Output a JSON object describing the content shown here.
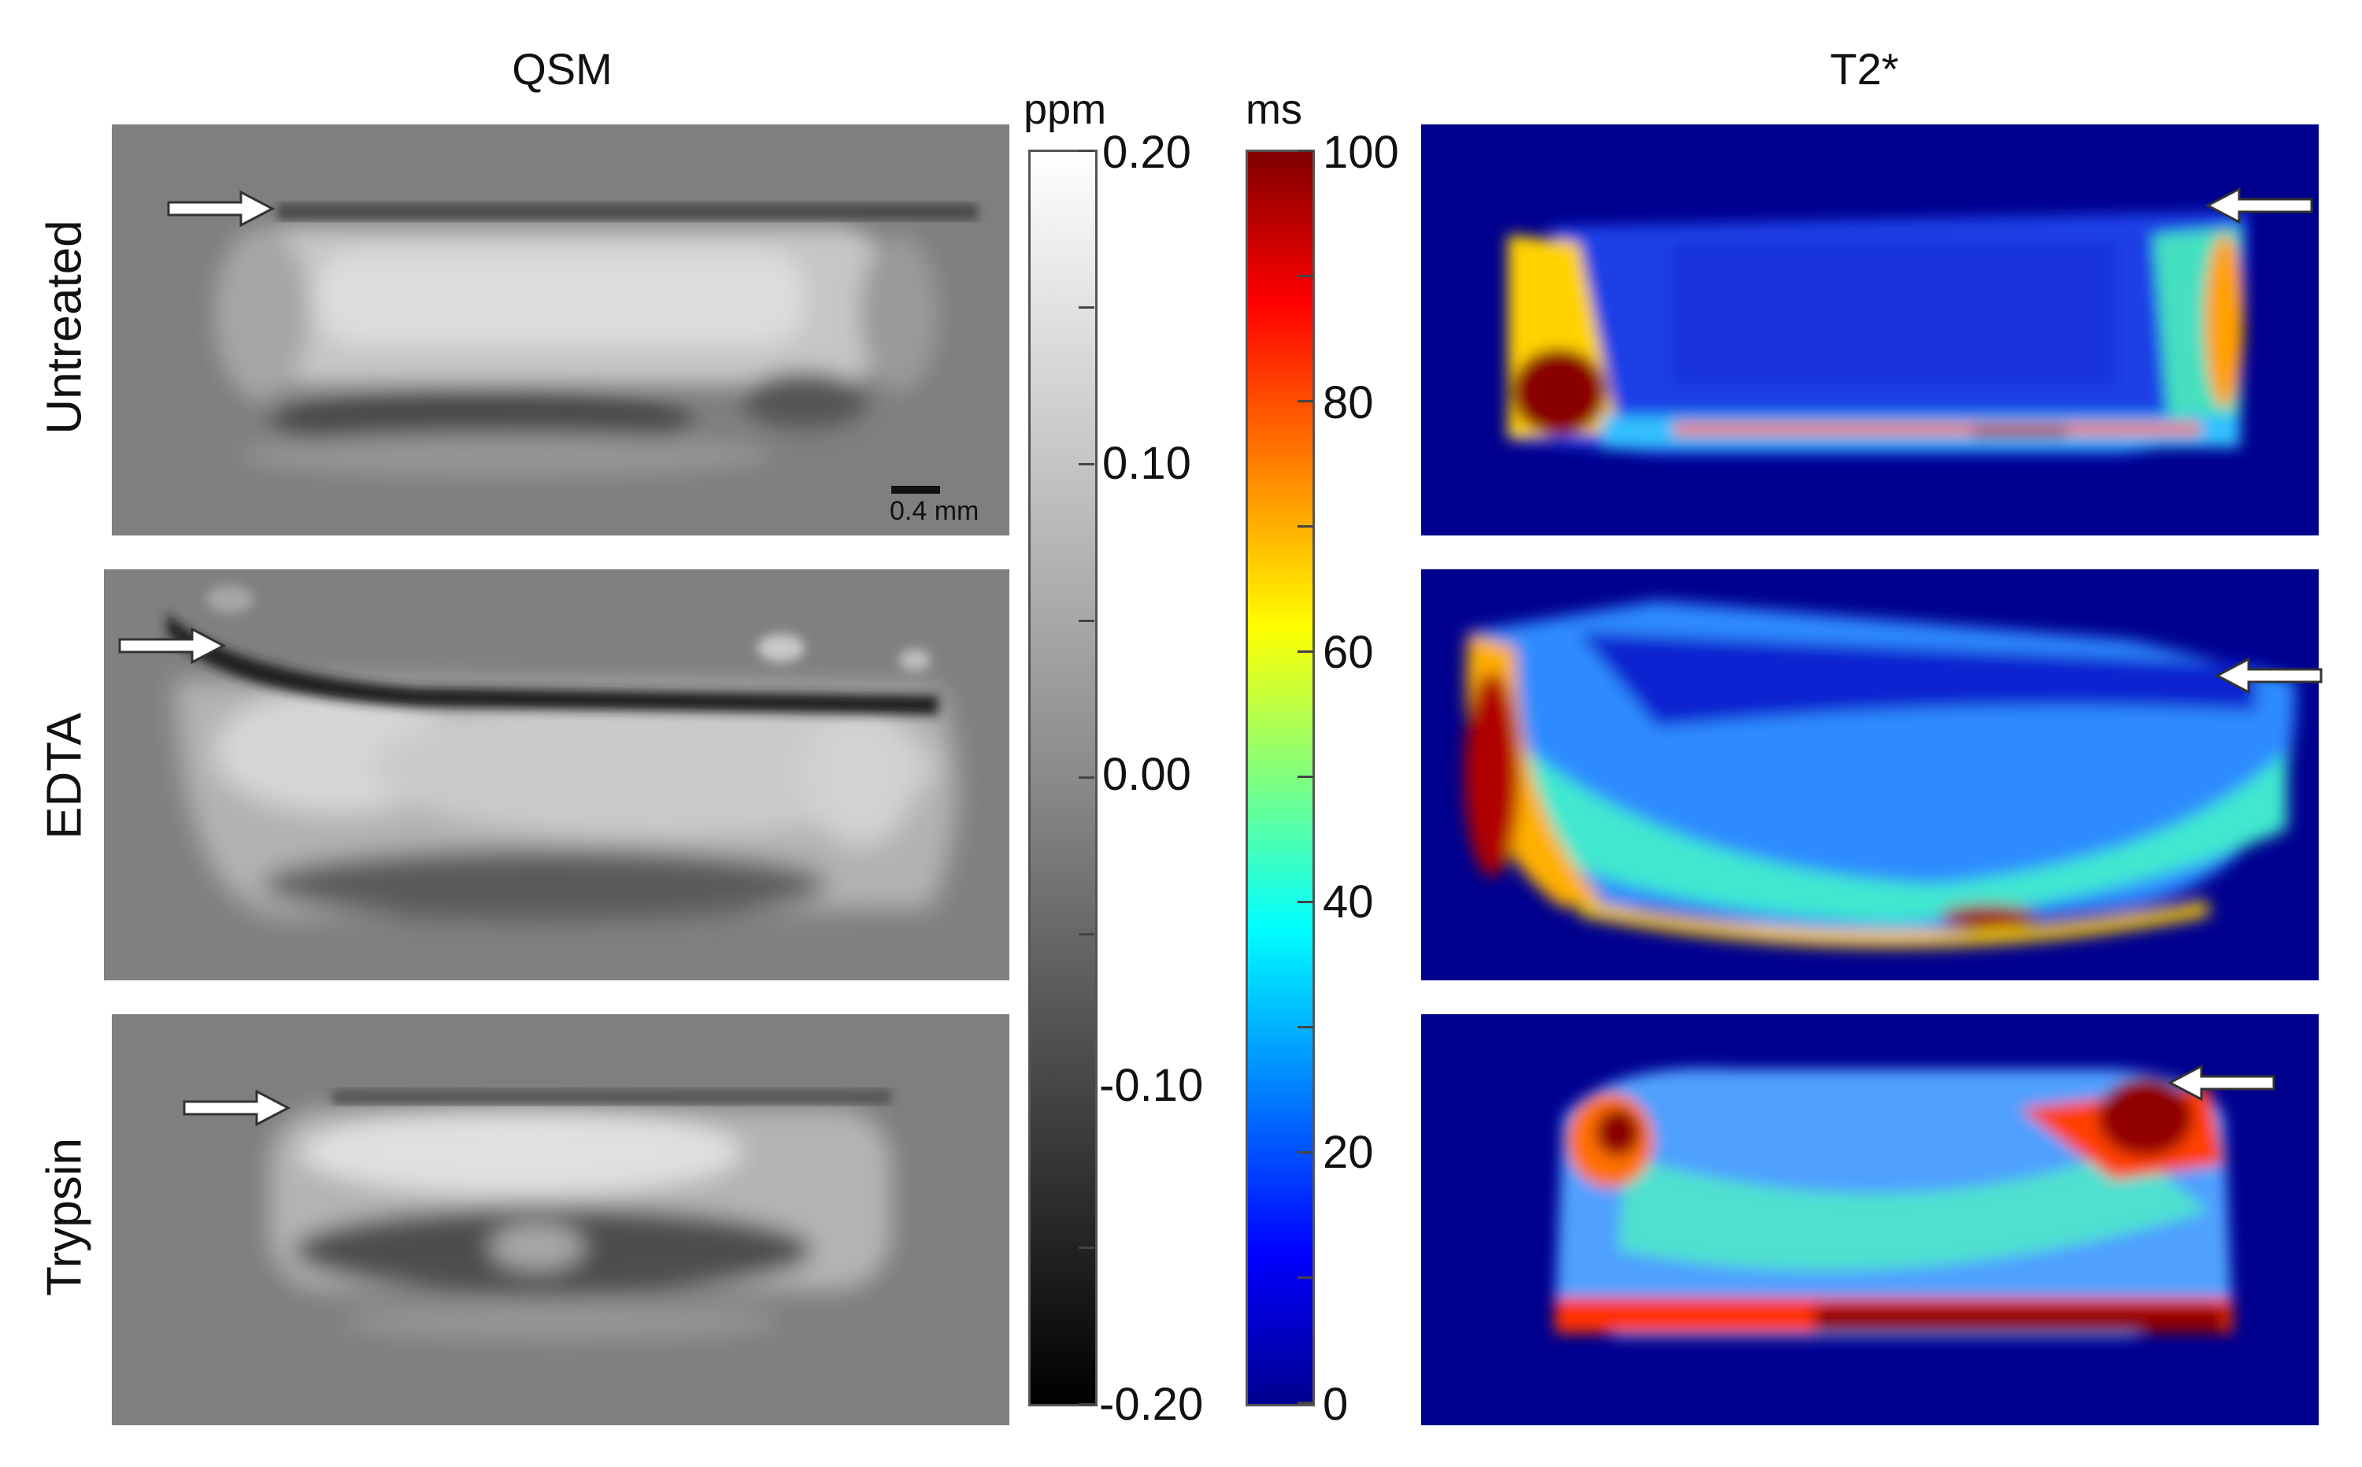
{
  "columns": {
    "left": "QSM",
    "right": "T2*"
  },
  "rows": [
    "Untreated",
    "EDTA",
    "Trypsin"
  ],
  "scale_bar": {
    "label": "0.4 mm"
  },
  "qsm_colorbar": {
    "unit": "ppm",
    "ticks": [
      "0.20",
      "0.10",
      "0.00",
      "-0.10",
      "-0.20"
    ],
    "range": [
      -0.2,
      0.2
    ],
    "colormap": "grayscale"
  },
  "t2_colorbar": {
    "unit": "ms",
    "ticks": [
      "100",
      "80",
      "60",
      "40",
      "20",
      "0"
    ],
    "range": [
      0,
      100
    ],
    "colormap": "jet"
  },
  "colors": {
    "qsm_background": "#7f7f7f",
    "t2_background": "#00008f",
    "arrow_fill": "#ffffff",
    "arrow_stroke": "#333333"
  }
}
